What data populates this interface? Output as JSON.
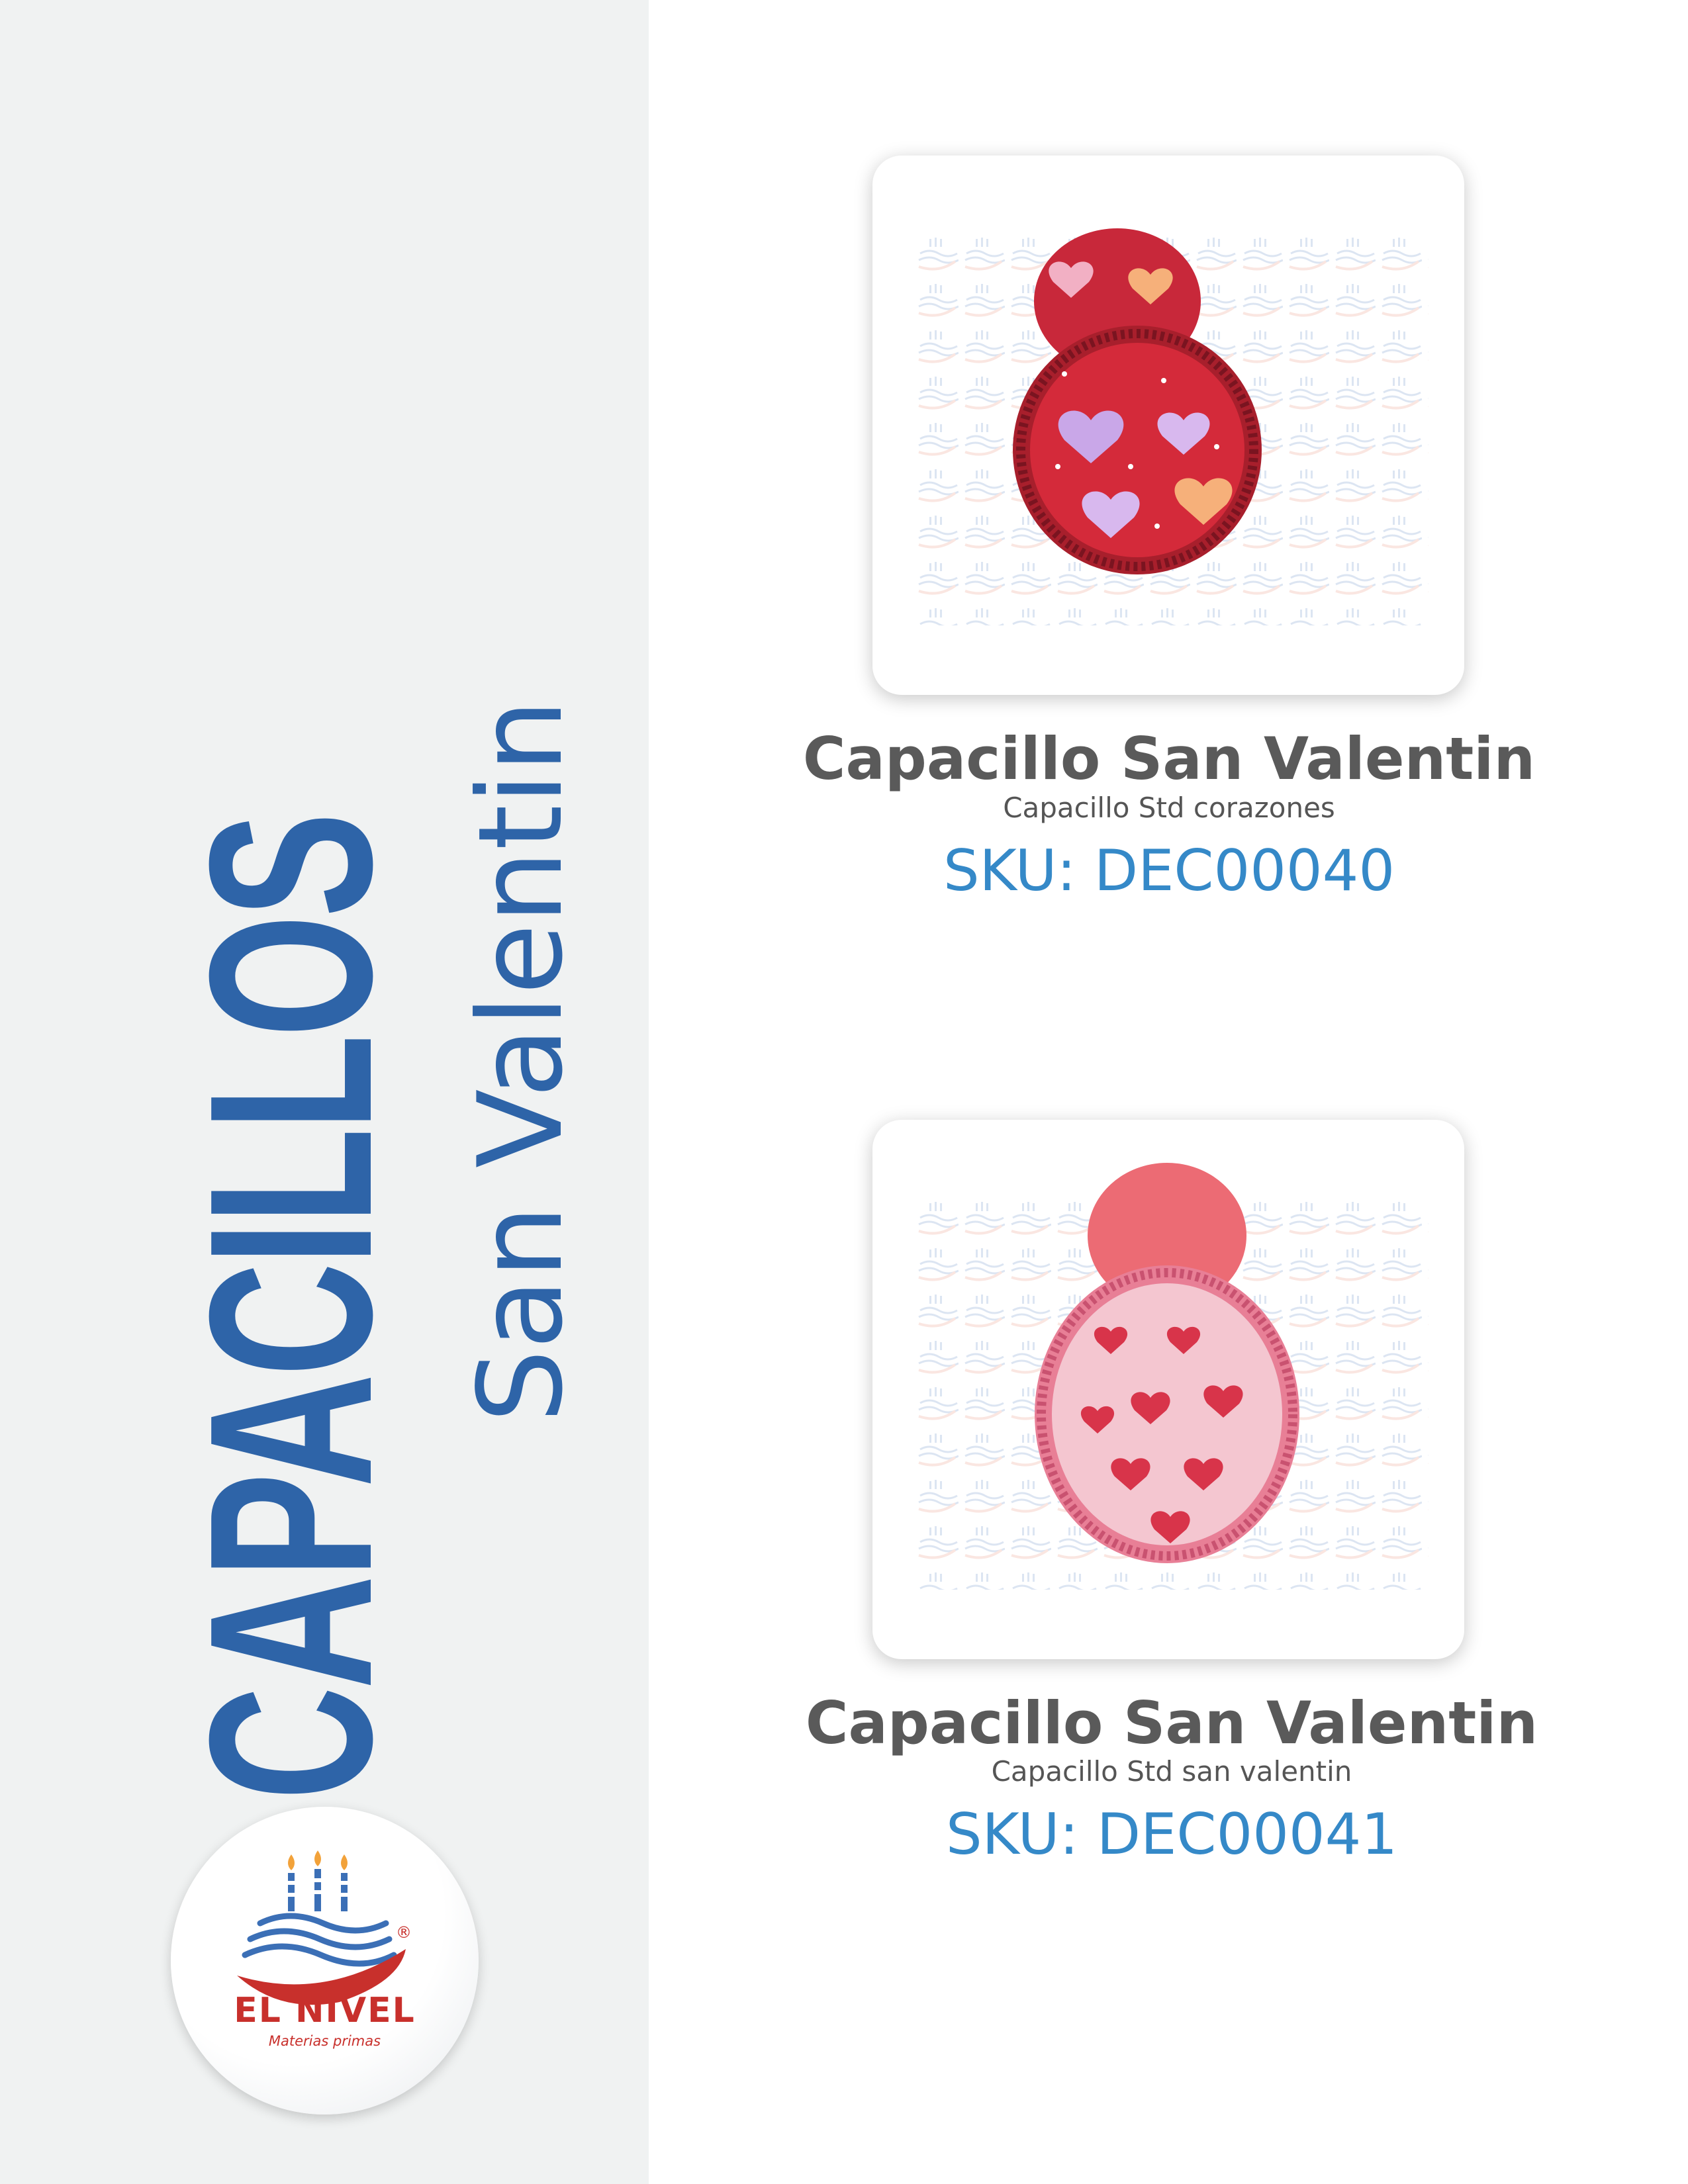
{
  "sidebar": {
    "title": "CAPACILLOS",
    "subtitle": "San Valentin",
    "logo": {
      "name": "EL NIVEL",
      "tagline": "Materias primas",
      "registered": "®",
      "icon": "cake-candles-logo-icon"
    }
  },
  "products": [
    {
      "name": "Capacillo San Valentin",
      "description": "Capacillo Std corazones",
      "sku": "SKU: DEC00040",
      "image_icon": "red-hearts-cupcake-liner-image"
    },
    {
      "name": "Capacillo San Valentin",
      "description": "Capacillo Std san valentin",
      "sku": "SKU: DEC00041",
      "image_icon": "pink-hearts-cupcake-liner-image"
    }
  ],
  "colors": {
    "brand_blue": "#2e64a8",
    "sku_blue": "#3589c8",
    "name_gray": "#5a5a5a",
    "logo_red": "#c8302c",
    "panel_bg": "#f0f2f2"
  }
}
